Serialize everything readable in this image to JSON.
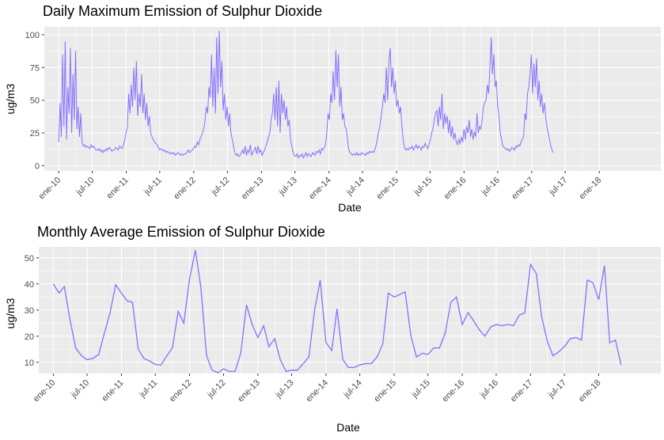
{
  "colors": {
    "line": "#8470ff",
    "panel_bg": "#ebebeb",
    "grid": "#ffffff"
  },
  "chart_data": [
    {
      "type": "line",
      "title": "Daily Maximum Emission of Sulphur Dioxide",
      "xlabel": "Date",
      "ylabel": "ug/m3",
      "ylim": [
        -4,
        106
      ],
      "yticks": [
        0,
        25,
        50,
        75,
        100
      ],
      "xlim": [
        "2009-10-15",
        "2018-11-30"
      ],
      "xticks": [
        {
          "date": "2010-01-01",
          "label": "ene-10"
        },
        {
          "date": "2010-07-01",
          "label": "jul-10"
        },
        {
          "date": "2011-01-01",
          "label": "ene-11"
        },
        {
          "date": "2011-07-01",
          "label": "jul-11"
        },
        {
          "date": "2012-01-01",
          "label": "ene-12"
        },
        {
          "date": "2012-07-01",
          "label": "jul-12"
        },
        {
          "date": "2013-01-01",
          "label": "ene-13"
        },
        {
          "date": "2013-07-01",
          "label": "jul-13"
        },
        {
          "date": "2014-01-01",
          "label": "ene-14"
        },
        {
          "date": "2014-07-01",
          "label": "jul-14"
        },
        {
          "date": "2015-01-01",
          "label": "ene-15"
        },
        {
          "date": "2015-07-01",
          "label": "jul-15"
        },
        {
          "date": "2016-01-01",
          "label": "ene-16"
        },
        {
          "date": "2016-07-01",
          "label": "jul-16"
        },
        {
          "date": "2017-01-01",
          "label": "ene-17"
        },
        {
          "date": "2017-07-01",
          "label": "jul-17"
        },
        {
          "date": "2018-01-01",
          "label": "ene-18"
        }
      ],
      "grid": true,
      "series": [
        {
          "x_start": "2010-01-01",
          "x_step_days": 7,
          "values": [
            18,
            48,
            22,
            85,
            30,
            95,
            20,
            60,
            40,
            90,
            25,
            70,
            35,
            88,
            28,
            45,
            22,
            40,
            18,
            15,
            16,
            14,
            15,
            14,
            13,
            16,
            14,
            15,
            13,
            12,
            12,
            13,
            11,
            12,
            10,
            12,
            11,
            13,
            12,
            14,
            13,
            11,
            12,
            12,
            14,
            13,
            12,
            15,
            14,
            13,
            16,
            20,
            25,
            30,
            55,
            40,
            62,
            45,
            75,
            50,
            80,
            38,
            55,
            45,
            70,
            40,
            55,
            35,
            48,
            30,
            38,
            25,
            22,
            20,
            18,
            17,
            16,
            14,
            12,
            13,
            12,
            11,
            12,
            10,
            11,
            10,
            9,
            10,
            9,
            10,
            8,
            9,
            10,
            9,
            8,
            9,
            8,
            9,
            9,
            10,
            12,
            10,
            11,
            12,
            13,
            15,
            14,
            18,
            16,
            20,
            22,
            25,
            28,
            35,
            45,
            40,
            60,
            52,
            85,
            45,
            75,
            40,
            98,
            55,
            103,
            60,
            80,
            42,
            55,
            35,
            45,
            30,
            40,
            25,
            20,
            15,
            10,
            8,
            9,
            7,
            8,
            10,
            12,
            9,
            15,
            8,
            12,
            10,
            16,
            8,
            10,
            12,
            14,
            9,
            15,
            10,
            12,
            8,
            10,
            12,
            15,
            18,
            22,
            25,
            35,
            40,
            55,
            35,
            60,
            30,
            65,
            25,
            55,
            40,
            50,
            35,
            45,
            30,
            35,
            20,
            15,
            10,
            8,
            7,
            9,
            6,
            8,
            7,
            9,
            6,
            8,
            10,
            7,
            9,
            8,
            7,
            10,
            9,
            8,
            11,
            10,
            12,
            9,
            13,
            12,
            14,
            16,
            25,
            40,
            35,
            55,
            48,
            72,
            50,
            88,
            60,
            85,
            45,
            60,
            35,
            40,
            30,
            28,
            20,
            12,
            10,
            9,
            8,
            9,
            8,
            10,
            8,
            9,
            8,
            10,
            9,
            9,
            8,
            10,
            9,
            11,
            10,
            11,
            10,
            12,
            15,
            20,
            26,
            30,
            38,
            45,
            55,
            48,
            75,
            50,
            80,
            90,
            60,
            75,
            55,
            65,
            45,
            50,
            40,
            45,
            30,
            20,
            14,
            12,
            13,
            12,
            14,
            13,
            15,
            12,
            14,
            16,
            13,
            15,
            14,
            12,
            15,
            14,
            17,
            15,
            13,
            16,
            20,
            25,
            28,
            35,
            40,
            42,
            30,
            45,
            35,
            55,
            28,
            40,
            32,
            38,
            25,
            35,
            22,
            30,
            20,
            25,
            18,
            16,
            20,
            17,
            22,
            18,
            28,
            20,
            30,
            25,
            35,
            22,
            28,
            20,
            26,
            22,
            40,
            25,
            30,
            28,
            35,
            45,
            48,
            50,
            62,
            55,
            75,
            98,
            70,
            85,
            60,
            65,
            45,
            38,
            25,
            20,
            15,
            14,
            13,
            12,
            13,
            11,
            12,
            14,
            13,
            12,
            15,
            14,
            16,
            15,
            18,
            20,
            22,
            40,
            35,
            55,
            60,
            70,
            85,
            55,
            78,
            60,
            82,
            50,
            65,
            45,
            55,
            40,
            48,
            38,
            30,
            25,
            20,
            15,
            12,
            10
          ]
        }
      ]
    },
    {
      "type": "line",
      "title": "Monthly Average Emission of Sulphur Dioxide",
      "xlabel": "Date",
      "ylabel": "ug/m3",
      "ylim": [
        5.7,
        54.2
      ],
      "yticks": [
        10,
        20,
        30,
        40,
        50
      ],
      "xlim": [
        "2009-10-15",
        "2018-11-30"
      ],
      "xticks": [
        {
          "date": "2010-01-01",
          "label": "ene-10"
        },
        {
          "date": "2010-07-01",
          "label": "jul-10"
        },
        {
          "date": "2011-01-01",
          "label": "ene-11"
        },
        {
          "date": "2011-07-01",
          "label": "jul-11"
        },
        {
          "date": "2012-01-01",
          "label": "ene-12"
        },
        {
          "date": "2012-07-01",
          "label": "jul-12"
        },
        {
          "date": "2013-01-01",
          "label": "ene-13"
        },
        {
          "date": "2013-07-01",
          "label": "jul-13"
        },
        {
          "date": "2014-01-01",
          "label": "ene-14"
        },
        {
          "date": "2014-07-01",
          "label": "jul-14"
        },
        {
          "date": "2015-01-01",
          "label": "ene-15"
        },
        {
          "date": "2015-07-01",
          "label": "jul-15"
        },
        {
          "date": "2016-01-01",
          "label": "ene-16"
        },
        {
          "date": "2016-07-01",
          "label": "jul-16"
        },
        {
          "date": "2017-01-01",
          "label": "ene-17"
        },
        {
          "date": "2017-07-01",
          "label": "jul-17"
        },
        {
          "date": "2018-01-01",
          "label": "ene-18"
        }
      ],
      "grid": true,
      "series": [
        {
          "x_start": "2010-01-01",
          "x_step_months": 1,
          "values": [
            40,
            36.5,
            39,
            26,
            15.5,
            12.5,
            11,
            11.5,
            13,
            21,
            29,
            39.7,
            36.5,
            33.5,
            33,
            15,
            11.5,
            10.5,
            9.2,
            9,
            12.5,
            15.5,
            29.5,
            25,
            42,
            53,
            39,
            12.5,
            7,
            6,
            7.5,
            6.5,
            6.5,
            13.5,
            32,
            24.5,
            19.5,
            24,
            16,
            19,
            11,
            6.5,
            7,
            7,
            9.5,
            12,
            30,
            41.5,
            17.5,
            14.5,
            30.5,
            11,
            8,
            8,
            9,
            9.5,
            9.5,
            12,
            17,
            36.5,
            35,
            36,
            37,
            20,
            12,
            13.5,
            13,
            15.5,
            15.5,
            21,
            33,
            35,
            24.5,
            29,
            26,
            22.5,
            20,
            23.5,
            24.5,
            24,
            24.5,
            24,
            28,
            29,
            47.5,
            44,
            27.5,
            18,
            12.5,
            14,
            16,
            19,
            19.5,
            18.5,
            41.5,
            40.5,
            34,
            47,
            17.5,
            18.5,
            9
          ]
        }
      ]
    }
  ]
}
